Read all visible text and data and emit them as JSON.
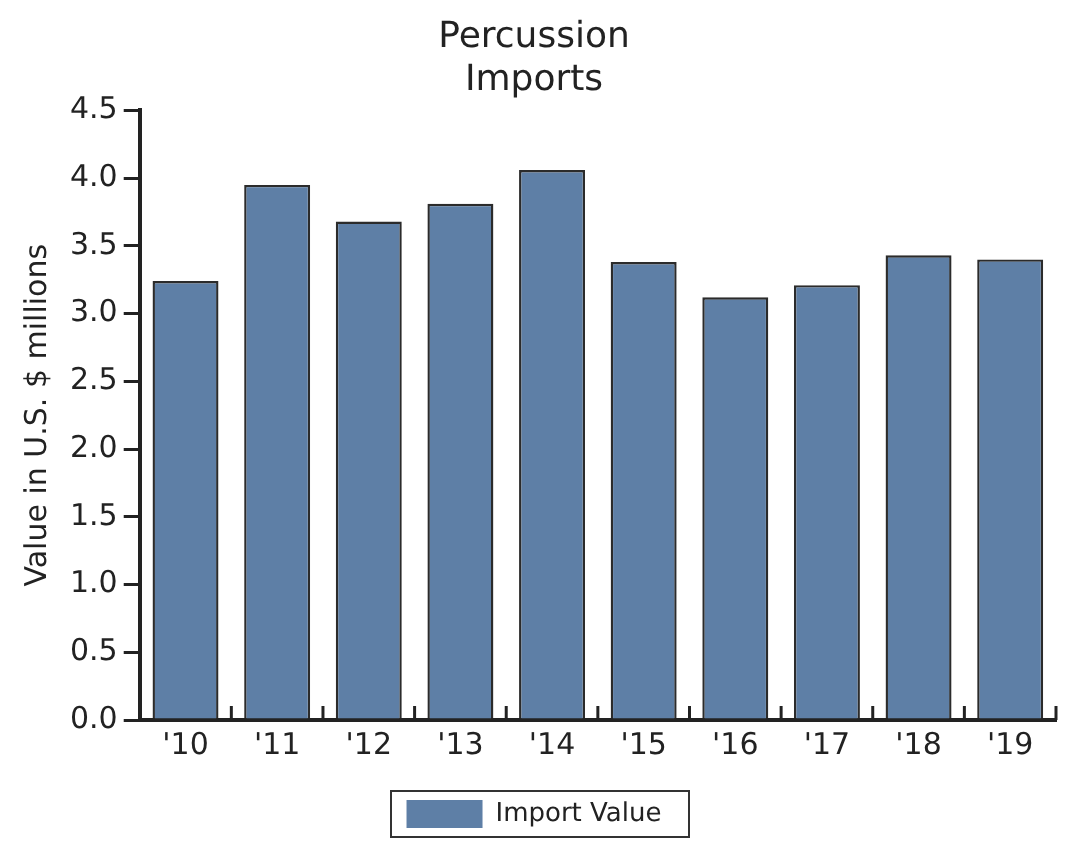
{
  "chart_data": {
    "type": "bar",
    "title": "Percussion\nImports",
    "ylabel": "Value in U.S. $ millions",
    "categories": [
      "'10",
      "'11",
      "'12",
      "'13",
      "'14",
      "'15",
      "'16",
      "'17",
      "'18",
      "'19"
    ],
    "series": [
      {
        "name": "Import Value",
        "color": "#5e7fa6",
        "values": [
          3.24,
          3.95,
          3.68,
          3.81,
          4.06,
          3.38,
          3.12,
          3.21,
          3.43,
          3.4
        ]
      }
    ],
    "ylim": [
      0,
      4.5
    ],
    "yticks": [
      {
        "value": 0,
        "label": "0.0"
      },
      0.5,
      {
        "value": 1,
        "label": "1.0"
      },
      1.5,
      {
        "value": 2,
        "label": "2.0"
      },
      2.5,
      {
        "value": 3,
        "label": "3.0"
      },
      3.5,
      {
        "value": 4,
        "label": "4.0"
      },
      4.5
    ],
    "grid": false,
    "legend": "bottom"
  }
}
